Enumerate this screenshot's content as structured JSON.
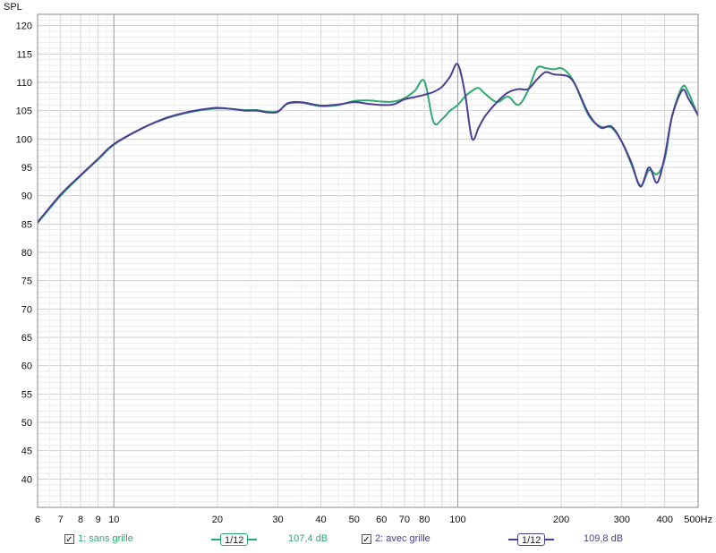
{
  "chart_data": {
    "type": "line",
    "ylabel": "SPL",
    "x_scale": "log",
    "xlim": [
      6,
      500
    ],
    "ylim": [
      35,
      122
    ],
    "y_ticks": [
      40,
      45,
      50,
      55,
      60,
      65,
      70,
      75,
      80,
      85,
      90,
      95,
      100,
      105,
      110,
      115,
      120
    ],
    "x_ticks": [
      6,
      7,
      8,
      9,
      10,
      20,
      30,
      40,
      50,
      60,
      70,
      80,
      100,
      200,
      300,
      400,
      500
    ],
    "x_tick_labels": [
      "6",
      "7",
      "8",
      "9",
      "10",
      "20",
      "30",
      "40",
      "50",
      "60",
      "70",
      "80",
      "100",
      "200",
      "300",
      "400",
      "500Hz"
    ],
    "grid": true,
    "series": [
      {
        "name": "1: sans grille",
        "color": "#2eaa6e",
        "x": [
          6,
          7,
          8,
          9,
          10,
          12,
          14,
          16,
          18,
          20,
          22,
          24,
          26,
          28,
          30,
          32,
          35,
          40,
          45,
          50,
          55,
          60,
          65,
          70,
          75,
          80,
          85,
          90,
          95,
          100,
          105,
          110,
          115,
          120,
          130,
          140,
          150,
          160,
          170,
          180,
          190,
          200,
          210,
          220,
          240,
          260,
          280,
          300,
          320,
          340,
          360,
          380,
          400,
          420,
          450,
          470,
          500
        ],
        "y": [
          85.2,
          90.0,
          93.5,
          96.4,
          99.0,
          101.8,
          103.5,
          104.5,
          105.1,
          105.4,
          105.3,
          105.1,
          105.1,
          104.8,
          104.9,
          106.2,
          106.4,
          105.8,
          106.0,
          106.7,
          106.8,
          106.6,
          106.6,
          107.2,
          108.5,
          110.2,
          103.0,
          103.5,
          105.0,
          106.0,
          107.5,
          108.5,
          109.0,
          108.0,
          106.5,
          107.5,
          106.0,
          108.5,
          112.5,
          112.5,
          112.3,
          112.5,
          111.5,
          109.5,
          104.2,
          102.2,
          102.0,
          99.5,
          95.5,
          91.8,
          94.5,
          93.8,
          96.5,
          104.0,
          109.2,
          108.0,
          104.0
        ]
      },
      {
        "name": "2: avec grille",
        "color": "#4a3f94",
        "x": [
          6,
          7,
          8,
          9,
          10,
          12,
          14,
          16,
          18,
          20,
          22,
          24,
          26,
          28,
          30,
          32,
          35,
          40,
          45,
          50,
          55,
          60,
          65,
          70,
          75,
          80,
          85,
          90,
          95,
          100,
          105,
          110,
          115,
          120,
          130,
          140,
          150,
          160,
          170,
          180,
          190,
          200,
          210,
          220,
          240,
          260,
          280,
          300,
          320,
          340,
          360,
          380,
          400,
          420,
          450,
          470,
          500
        ],
        "y": [
          85.3,
          90.2,
          93.6,
          96.5,
          99.1,
          101.8,
          103.6,
          104.6,
          105.2,
          105.5,
          105.3,
          105.0,
          105.0,
          104.7,
          104.8,
          106.3,
          106.5,
          105.9,
          106.1,
          106.5,
          106.2,
          106.0,
          106.1,
          107.0,
          107.4,
          107.8,
          108.3,
          109.2,
          111.0,
          113.2,
          108.0,
          100.1,
          102.0,
          104.0,
          106.5,
          108.2,
          108.8,
          108.8,
          110.5,
          111.8,
          111.4,
          111.3,
          111.0,
          109.5,
          104.5,
          102.0,
          102.2,
          99.5,
          95.8,
          91.6,
          95.0,
          92.3,
          97.0,
          104.0,
          108.6,
          107.0,
          104.2
        ]
      }
    ]
  },
  "legend": {
    "item1_check": "✓",
    "item1_label": "1: sans grille",
    "item1_smoothing": "1/12",
    "item1_value": "107,4 dB",
    "item2_check": "✓",
    "item2_label": "2: avec grille",
    "item2_smoothing": "1/12",
    "item2_value": "109,8 dB"
  }
}
